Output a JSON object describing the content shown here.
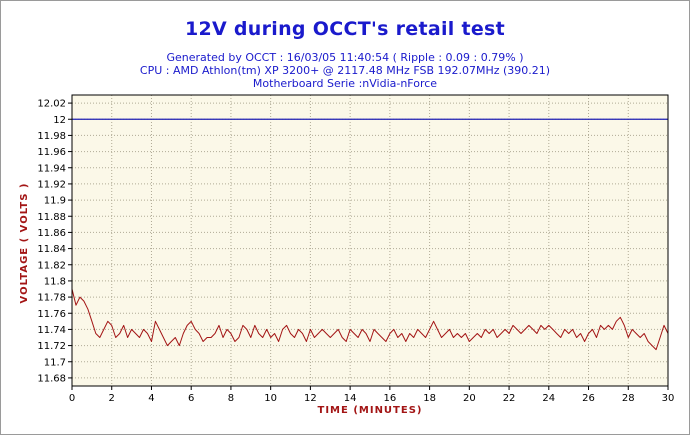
{
  "chart_data": {
    "type": "line",
    "title": "12V during OCCT's retail test",
    "subtitle_lines": [
      "Generated by OCCT : 16/03/05 11:40:54 ( Ripple : 0.09 : 0.79% )",
      "CPU : AMD Athlon(tm) XP 3200+ @ 2117.48 MHz FSB 192.07MHz (390.21)",
      "Motherboard Serie :nVidia-nForce"
    ],
    "xlabel": "TIME (MINUTES)",
    "ylabel": "VOLTAGE ( VOLTS )",
    "xlim": [
      0,
      30
    ],
    "ylim": [
      11.67,
      12.03
    ],
    "x_ticks": [
      0,
      2,
      4,
      6,
      8,
      10,
      12,
      14,
      16,
      18,
      20,
      22,
      24,
      26,
      28,
      30
    ],
    "y_ticks": [
      "11.68",
      "11.7",
      "11.72",
      "11.74",
      "11.76",
      "11.78",
      "11.8",
      "11.82",
      "11.84",
      "11.86",
      "11.88",
      "11.9",
      "11.92",
      "11.94",
      "11.96",
      "11.98",
      "12",
      "12.02"
    ],
    "grid": true,
    "reference_line": {
      "y": 12.0,
      "color": "#1f1fb4"
    },
    "series": [
      {
        "color": "#a31515",
        "x": [
          0,
          0.2,
          0.4,
          0.6,
          0.8,
          1.0,
          1.2,
          1.4,
          1.6,
          1.8,
          2.0,
          2.2,
          2.4,
          2.6,
          2.8,
          3.0,
          3.2,
          3.4,
          3.6,
          3.8,
          4.0,
          4.2,
          4.4,
          4.6,
          4.8,
          5.0,
          5.2,
          5.4,
          5.6,
          5.8,
          6.0,
          6.2,
          6.4,
          6.6,
          6.8,
          7.0,
          7.2,
          7.4,
          7.6,
          7.8,
          8.0,
          8.2,
          8.4,
          8.6,
          8.8,
          9.0,
          9.2,
          9.4,
          9.6,
          9.8,
          10.0,
          10.2,
          10.4,
          10.6,
          10.8,
          11.0,
          11.2,
          11.4,
          11.6,
          11.8,
          12.0,
          12.2,
          12.4,
          12.6,
          12.8,
          13.0,
          13.2,
          13.4,
          13.6,
          13.8,
          14.0,
          14.2,
          14.4,
          14.6,
          14.8,
          15.0,
          15.2,
          15.4,
          15.6,
          15.8,
          16.0,
          16.2,
          16.4,
          16.6,
          16.8,
          17.0,
          17.2,
          17.4,
          17.6,
          17.8,
          18.0,
          18.2,
          18.4,
          18.6,
          18.8,
          19.0,
          19.2,
          19.4,
          19.6,
          19.8,
          20.0,
          20.2,
          20.4,
          20.6,
          20.8,
          21.0,
          21.2,
          21.4,
          21.6,
          21.8,
          22.0,
          22.2,
          22.4,
          22.6,
          22.8,
          23.0,
          23.2,
          23.4,
          23.6,
          23.8,
          24.0,
          24.2,
          24.4,
          24.6,
          24.8,
          25.0,
          25.2,
          25.4,
          25.6,
          25.8,
          26.0,
          26.2,
          26.4,
          26.6,
          26.8,
          27.0,
          27.2,
          27.4,
          27.6,
          27.8,
          28.0,
          28.2,
          28.4,
          28.6,
          28.8,
          29.0,
          29.2,
          29.4,
          29.6,
          29.8,
          30.0
        ],
        "y": [
          11.79,
          11.77,
          11.78,
          11.775,
          11.765,
          11.75,
          11.735,
          11.73,
          11.74,
          11.75,
          11.745,
          11.73,
          11.735,
          11.745,
          11.73,
          11.74,
          11.735,
          11.73,
          11.74,
          11.735,
          11.725,
          11.75,
          11.74,
          11.73,
          11.72,
          11.725,
          11.73,
          11.72,
          11.735,
          11.745,
          11.75,
          11.74,
          11.735,
          11.725,
          11.73,
          11.73,
          11.735,
          11.745,
          11.73,
          11.74,
          11.735,
          11.725,
          11.73,
          11.745,
          11.74,
          11.73,
          11.745,
          11.735,
          11.73,
          11.74,
          11.73,
          11.735,
          11.725,
          11.74,
          11.745,
          11.735,
          11.73,
          11.74,
          11.735,
          11.725,
          11.74,
          11.73,
          11.735,
          11.74,
          11.735,
          11.73,
          11.735,
          11.74,
          11.73,
          11.725,
          11.74,
          11.735,
          11.73,
          11.74,
          11.735,
          11.725,
          11.74,
          11.735,
          11.73,
          11.725,
          11.735,
          11.74,
          11.73,
          11.735,
          11.725,
          11.735,
          11.73,
          11.74,
          11.735,
          11.73,
          11.74,
          11.75,
          11.74,
          11.73,
          11.735,
          11.74,
          11.73,
          11.735,
          11.73,
          11.735,
          11.725,
          11.73,
          11.735,
          11.73,
          11.74,
          11.735,
          11.74,
          11.73,
          11.735,
          11.74,
          11.735,
          11.745,
          11.74,
          11.735,
          11.74,
          11.745,
          11.74,
          11.735,
          11.745,
          11.74,
          11.745,
          11.74,
          11.735,
          11.73,
          11.74,
          11.735,
          11.74,
          11.73,
          11.735,
          11.725,
          11.735,
          11.74,
          11.73,
          11.745,
          11.74,
          11.745,
          11.74,
          11.75,
          11.755,
          11.745,
          11.73,
          11.74,
          11.735,
          11.73,
          11.735,
          11.725,
          11.72,
          11.715,
          11.73,
          11.745,
          11.735
        ]
      }
    ]
  }
}
